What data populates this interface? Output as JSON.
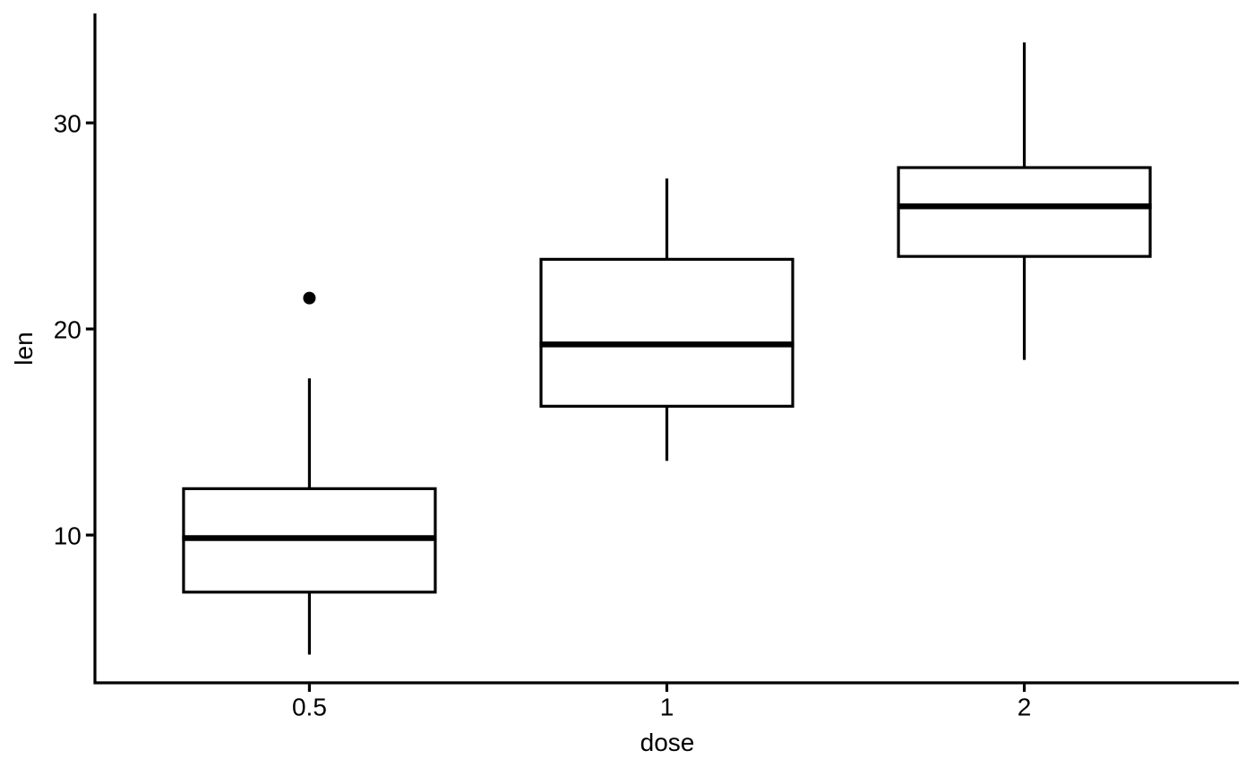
{
  "figure": {
    "background": "#ffffff",
    "ink_color": "#000000"
  },
  "chart_data": {
    "type": "boxplot",
    "title": "",
    "xlabel": "dose",
    "ylabel": "len",
    "categories": [
      "0.5",
      "1",
      "2"
    ],
    "y_ticks": [
      "10",
      "20",
      "30"
    ],
    "y_tick_values": [
      10,
      20,
      30
    ],
    "ylim": [
      2.83,
      35.31
    ],
    "grid": "off",
    "legend": "none",
    "boxes": [
      {
        "category": "0.5",
        "whisker_low": 4.2,
        "q1": 7.23,
        "median": 9.85,
        "q3": 12.25,
        "whisker_high": 17.6,
        "outliers": [
          21.5
        ]
      },
      {
        "category": "1",
        "whisker_low": 13.6,
        "q1": 16.25,
        "median": 19.25,
        "q3": 23.38,
        "whisker_high": 27.3,
        "outliers": []
      },
      {
        "category": "2",
        "whisker_low": 18.5,
        "q1": 23.52,
        "median": 25.95,
        "q3": 27.83,
        "whisker_high": 33.9,
        "outliers": []
      }
    ],
    "colors": {
      "box_fill": "#ffffff",
      "stroke": "#000000"
    }
  }
}
